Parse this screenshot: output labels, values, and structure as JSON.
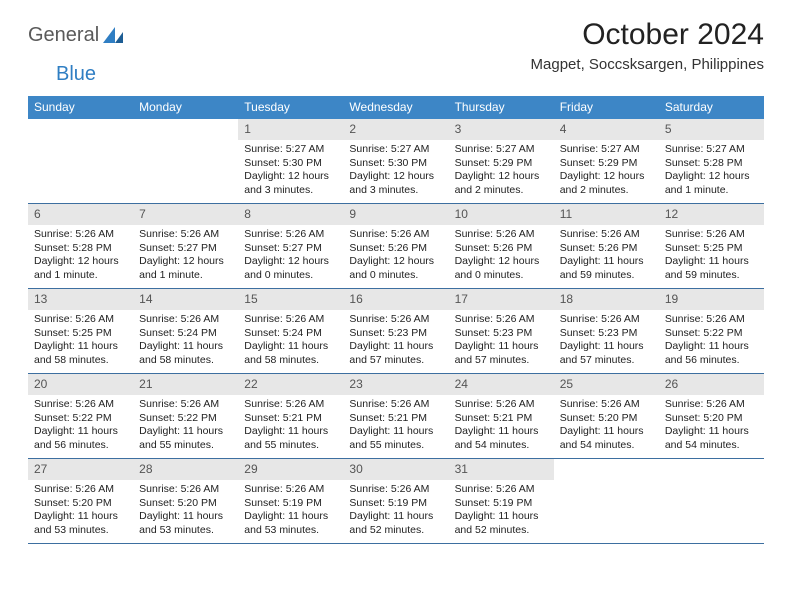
{
  "logo": {
    "word1": "General",
    "word2": "Blue"
  },
  "title": "October 2024",
  "location": "Magpet, Soccsksargen, Philippines",
  "colors": {
    "header_bg": "#3d86c6",
    "header_text": "#ffffff",
    "daynum_bg": "#e7e7e7",
    "daynum_text": "#555555",
    "week_border": "#3d6fa0",
    "logo_gray": "#5a5a5a",
    "logo_blue": "#2f7ec3",
    "body_text": "#222222",
    "background": "#ffffff"
  },
  "typography": {
    "title_fontsize": 30,
    "location_fontsize": 15,
    "dow_fontsize": 12,
    "daynum_fontsize": 12,
    "cell_fontsize": 10.5
  },
  "dow": [
    "Sunday",
    "Monday",
    "Tuesday",
    "Wednesday",
    "Thursday",
    "Friday",
    "Saturday"
  ],
  "weeks": [
    [
      {
        "blank": true
      },
      {
        "blank": true
      },
      {
        "n": "1",
        "sr": "Sunrise: 5:27 AM",
        "ss": "Sunset: 5:30 PM",
        "dl": "Daylight: 12 hours and 3 minutes."
      },
      {
        "n": "2",
        "sr": "Sunrise: 5:27 AM",
        "ss": "Sunset: 5:30 PM",
        "dl": "Daylight: 12 hours and 3 minutes."
      },
      {
        "n": "3",
        "sr": "Sunrise: 5:27 AM",
        "ss": "Sunset: 5:29 PM",
        "dl": "Daylight: 12 hours and 2 minutes."
      },
      {
        "n": "4",
        "sr": "Sunrise: 5:27 AM",
        "ss": "Sunset: 5:29 PM",
        "dl": "Daylight: 12 hours and 2 minutes."
      },
      {
        "n": "5",
        "sr": "Sunrise: 5:27 AM",
        "ss": "Sunset: 5:28 PM",
        "dl": "Daylight: 12 hours and 1 minute."
      }
    ],
    [
      {
        "n": "6",
        "sr": "Sunrise: 5:26 AM",
        "ss": "Sunset: 5:28 PM",
        "dl": "Daylight: 12 hours and 1 minute."
      },
      {
        "n": "7",
        "sr": "Sunrise: 5:26 AM",
        "ss": "Sunset: 5:27 PM",
        "dl": "Daylight: 12 hours and 1 minute."
      },
      {
        "n": "8",
        "sr": "Sunrise: 5:26 AM",
        "ss": "Sunset: 5:27 PM",
        "dl": "Daylight: 12 hours and 0 minutes."
      },
      {
        "n": "9",
        "sr": "Sunrise: 5:26 AM",
        "ss": "Sunset: 5:26 PM",
        "dl": "Daylight: 12 hours and 0 minutes."
      },
      {
        "n": "10",
        "sr": "Sunrise: 5:26 AM",
        "ss": "Sunset: 5:26 PM",
        "dl": "Daylight: 12 hours and 0 minutes."
      },
      {
        "n": "11",
        "sr": "Sunrise: 5:26 AM",
        "ss": "Sunset: 5:26 PM",
        "dl": "Daylight: 11 hours and 59 minutes."
      },
      {
        "n": "12",
        "sr": "Sunrise: 5:26 AM",
        "ss": "Sunset: 5:25 PM",
        "dl": "Daylight: 11 hours and 59 minutes."
      }
    ],
    [
      {
        "n": "13",
        "sr": "Sunrise: 5:26 AM",
        "ss": "Sunset: 5:25 PM",
        "dl": "Daylight: 11 hours and 58 minutes."
      },
      {
        "n": "14",
        "sr": "Sunrise: 5:26 AM",
        "ss": "Sunset: 5:24 PM",
        "dl": "Daylight: 11 hours and 58 minutes."
      },
      {
        "n": "15",
        "sr": "Sunrise: 5:26 AM",
        "ss": "Sunset: 5:24 PM",
        "dl": "Daylight: 11 hours and 58 minutes."
      },
      {
        "n": "16",
        "sr": "Sunrise: 5:26 AM",
        "ss": "Sunset: 5:23 PM",
        "dl": "Daylight: 11 hours and 57 minutes."
      },
      {
        "n": "17",
        "sr": "Sunrise: 5:26 AM",
        "ss": "Sunset: 5:23 PM",
        "dl": "Daylight: 11 hours and 57 minutes."
      },
      {
        "n": "18",
        "sr": "Sunrise: 5:26 AM",
        "ss": "Sunset: 5:23 PM",
        "dl": "Daylight: 11 hours and 57 minutes."
      },
      {
        "n": "19",
        "sr": "Sunrise: 5:26 AM",
        "ss": "Sunset: 5:22 PM",
        "dl": "Daylight: 11 hours and 56 minutes."
      }
    ],
    [
      {
        "n": "20",
        "sr": "Sunrise: 5:26 AM",
        "ss": "Sunset: 5:22 PM",
        "dl": "Daylight: 11 hours and 56 minutes."
      },
      {
        "n": "21",
        "sr": "Sunrise: 5:26 AM",
        "ss": "Sunset: 5:22 PM",
        "dl": "Daylight: 11 hours and 55 minutes."
      },
      {
        "n": "22",
        "sr": "Sunrise: 5:26 AM",
        "ss": "Sunset: 5:21 PM",
        "dl": "Daylight: 11 hours and 55 minutes."
      },
      {
        "n": "23",
        "sr": "Sunrise: 5:26 AM",
        "ss": "Sunset: 5:21 PM",
        "dl": "Daylight: 11 hours and 55 minutes."
      },
      {
        "n": "24",
        "sr": "Sunrise: 5:26 AM",
        "ss": "Sunset: 5:21 PM",
        "dl": "Daylight: 11 hours and 54 minutes."
      },
      {
        "n": "25",
        "sr": "Sunrise: 5:26 AM",
        "ss": "Sunset: 5:20 PM",
        "dl": "Daylight: 11 hours and 54 minutes."
      },
      {
        "n": "26",
        "sr": "Sunrise: 5:26 AM",
        "ss": "Sunset: 5:20 PM",
        "dl": "Daylight: 11 hours and 54 minutes."
      }
    ],
    [
      {
        "n": "27",
        "sr": "Sunrise: 5:26 AM",
        "ss": "Sunset: 5:20 PM",
        "dl": "Daylight: 11 hours and 53 minutes."
      },
      {
        "n": "28",
        "sr": "Sunrise: 5:26 AM",
        "ss": "Sunset: 5:20 PM",
        "dl": "Daylight: 11 hours and 53 minutes."
      },
      {
        "n": "29",
        "sr": "Sunrise: 5:26 AM",
        "ss": "Sunset: 5:19 PM",
        "dl": "Daylight: 11 hours and 53 minutes."
      },
      {
        "n": "30",
        "sr": "Sunrise: 5:26 AM",
        "ss": "Sunset: 5:19 PM",
        "dl": "Daylight: 11 hours and 52 minutes."
      },
      {
        "n": "31",
        "sr": "Sunrise: 5:26 AM",
        "ss": "Sunset: 5:19 PM",
        "dl": "Daylight: 11 hours and 52 minutes."
      },
      {
        "blank": true
      },
      {
        "blank": true
      }
    ]
  ]
}
